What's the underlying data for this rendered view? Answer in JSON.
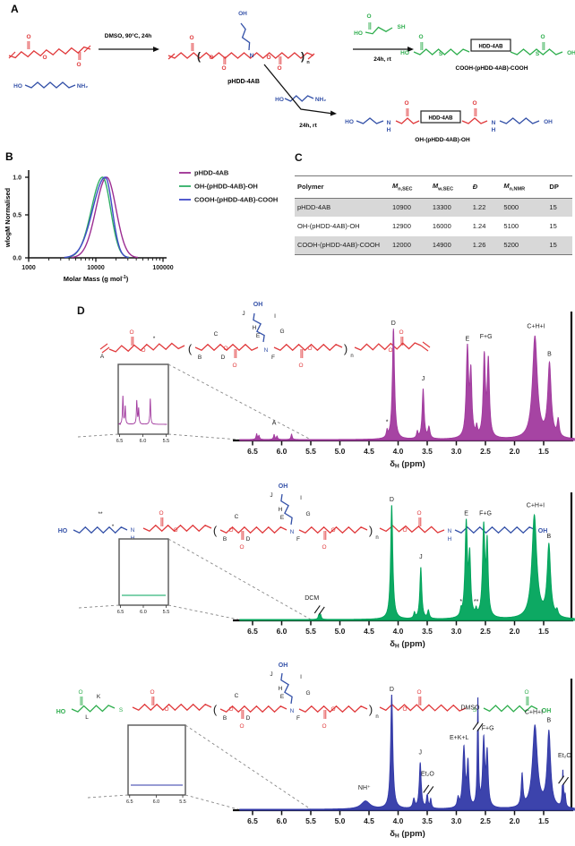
{
  "panel_labels": {
    "a": "A",
    "b": "B",
    "c": "C",
    "d": "D"
  },
  "panel_a": {
    "cond1": "DMSO, 90°C, 24h",
    "cond2": "24h, rt",
    "cond3": "24h, rt",
    "polymer_label": "pHDD-4AB",
    "box_label": "HDD-4AB",
    "product_cooh_label": "COOH-(pHDD-4AB)-COOH",
    "product_oh_label": "OH-(pHDD-4AB)-OH",
    "atoms": {
      "ho": "HO",
      "oh": "OH",
      "nh2": "NH₂",
      "sh": "SH",
      "n": "N",
      "h": "H",
      "o": "O",
      "s": "S",
      "lb": "(",
      "rb": ")",
      "nn": "n"
    }
  },
  "panel_b": {
    "ylabel": "wlogM Normalised",
    "xlabel_pre": "Molar Mass (g mol",
    "xlabel_sup": "-1",
    "xlabel_post": ")",
    "yticks": [
      "1.0",
      "0.5",
      "0.0"
    ],
    "xticks": [
      "1000",
      "10000",
      "100000"
    ]
  },
  "panel_c": {
    "table": {
      "headers": [
        {
          "text": "Polymer",
          "italic": false,
          "sub": ""
        },
        {
          "text": "M",
          "italic": true,
          "sub": "n,SEC"
        },
        {
          "text": "M",
          "italic": true,
          "sub": "w,SEC"
        },
        {
          "text": "Đ",
          "italic": true,
          "sub": ""
        },
        {
          "text": "M",
          "italic": true,
          "sub": "n,NMR"
        },
        {
          "text": "DP",
          "italic": false,
          "sub": ""
        }
      ],
      "rows": [
        [
          "pHDD-4AB",
          "10900",
          "13300",
          "1.22",
          "5000",
          "15"
        ],
        [
          "OH-(pHDD-4AB)-OH",
          "12900",
          "16000",
          "1.24",
          "5100",
          "15"
        ],
        [
          "COOH-(pHDD-4AB)-COOH",
          "12000",
          "14900",
          "1.26",
          "5200",
          "15"
        ]
      ]
    }
  },
  "panel_d": {
    "xlabel": {
      "symbol": "δ",
      "sub": "H",
      "rest": " (ppm)"
    },
    "ticks": [
      "6.5",
      "6.0",
      "5.5",
      "5.0",
      "4.5",
      "4.0",
      "3.5",
      "3.0",
      "2.5",
      "2.0",
      "1.5"
    ],
    "inset_ticks": [
      "6.5",
      "6.0",
      "5.5"
    ]
  },
  "chart_data": [
    {
      "type": "line",
      "panel": "B",
      "xlabel": "Molar Mass (g mol-1)",
      "ylabel": "wlogM Normalised",
      "x_scale": "log",
      "xlim": [
        1000,
        100000
      ],
      "ylim": [
        0.0,
        1.0
      ],
      "xticks": [
        1000,
        10000,
        100000
      ],
      "yticks": [
        0.0,
        0.5,
        1.0
      ],
      "grid": false,
      "legend_position": "right",
      "series": [
        {
          "name": "pHDD-4AB",
          "color": "#9c2d92",
          "peak_molar_mass": 14500,
          "peak_y": 1.0,
          "onset": 4500,
          "end": 55000,
          "log_mu": 4.161,
          "sigma_log_left": 0.16,
          "sigma_log_right": 0.14
        },
        {
          "name": "OH-(pHDD-4AB)-OH",
          "color": "#2fae66",
          "peak_molar_mass": 12600,
          "peak_y": 1.0,
          "onset": 4300,
          "end": 45000,
          "log_mu": 4.1,
          "sigma_log_left": 0.165,
          "sigma_log_right": 0.12
        },
        {
          "name": "COOH-(pHDD-4AB)-COOH",
          "color": "#4049c8",
          "peak_molar_mass": 13800,
          "peak_y": 1.0,
          "onset": 3100,
          "end": 40000,
          "log_mu": 4.14,
          "sigma_log_left": 0.185,
          "sigma_log_right": 0.105
        }
      ]
    },
    {
      "type": "nmr",
      "name": "pHDD-4AB",
      "color": "#a13a9e",
      "xlabel": "δH (ppm)",
      "xlim": [
        6.75,
        0.95
      ],
      "peaks": [
        [
          6.43,
          0.05,
          0.012
        ],
        [
          6.39,
          0.035,
          0.012
        ],
        [
          6.13,
          0.045,
          0.012
        ],
        [
          6.08,
          0.03,
          0.012
        ],
        [
          5.83,
          0.05,
          0.012
        ],
        [
          4.19,
          0.06,
          0.014
        ],
        [
          4.08,
          1.0,
          0.022
        ],
        [
          3.67,
          0.06,
          0.015
        ],
        [
          3.57,
          0.45,
          0.02
        ],
        [
          3.47,
          0.1,
          0.02
        ],
        [
          2.81,
          0.8,
          0.024
        ],
        [
          2.75,
          0.55,
          0.02
        ],
        [
          2.65,
          0.08,
          0.015
        ],
        [
          2.52,
          0.72,
          0.022
        ],
        [
          2.45,
          0.68,
          0.022
        ],
        [
          1.65,
          0.92,
          0.05
        ],
        [
          1.4,
          0.66,
          0.035
        ],
        [
          1.25,
          0.15,
          0.02
        ]
      ],
      "labels": [
        [
          "D",
          4.08,
          1.0,
          0
        ],
        [
          "J",
          3.57,
          0.5,
          0
        ],
        [
          "E",
          2.81,
          0.86,
          0
        ],
        [
          "F+G",
          2.49,
          0.88,
          0
        ],
        [
          "C+H+I",
          1.63,
          0.97,
          0
        ],
        [
          "B",
          1.4,
          0.72,
          0
        ],
        [
          "A",
          6.13,
          0.1,
          0
        ],
        [
          "*",
          4.19,
          0.11,
          0
        ]
      ],
      "breaks": [],
      "inset_peaks": [
        [
          6.43,
          0.6
        ],
        [
          6.38,
          0.38
        ],
        [
          6.13,
          0.5
        ],
        [
          6.09,
          0.33
        ],
        [
          5.84,
          0.55
        ]
      ],
      "structure_texts": [
        [
          "A",
          114,
          70
        ],
        [
          "O",
          147,
          43,
          "r"
        ],
        [
          "O",
          160,
          63,
          "r"
        ],
        [
          "*",
          172,
          50
        ],
        [
          "(",
          212,
          64,
          "k",
          13
        ],
        [
          "B",
          223,
          71
        ],
        [
          "C",
          241,
          45
        ],
        [
          "D",
          249,
          71
        ],
        [
          "O",
          252,
          61,
          "r"
        ],
        [
          "O",
          262,
          80,
          "r"
        ],
        [
          "E",
          288,
          47
        ],
        [
          "N",
          297,
          63,
          "b"
        ],
        [
          "F",
          305,
          71
        ],
        [
          "G",
          315,
          42
        ],
        [
          "H",
          284,
          38
        ],
        [
          "I",
          307,
          25
        ],
        [
          "J",
          272,
          22
        ],
        [
          "OH",
          288,
          12,
          "b",
          7,
          1
        ],
        [
          "O",
          336,
          80,
          "r"
        ],
        [
          "O",
          346,
          61,
          "r"
        ],
        [
          ")",
          386,
          64,
          "k",
          13
        ],
        [
          "n",
          393,
          69,
          "k",
          6
        ],
        [
          "O",
          436,
          63,
          "r"
        ],
        [
          "O",
          448,
          43,
          "r"
        ]
      ]
    },
    {
      "type": "nmr",
      "name": "OH-(pHDD-4AB)-OH",
      "color": "#00a45b",
      "xlabel": "δH (ppm)",
      "xlim": [
        6.75,
        0.95
      ],
      "peaks": [
        [
          5.36,
          0.05,
          0.012
        ],
        [
          5.33,
          0.04,
          0.012
        ],
        [
          4.11,
          1.0,
          0.022
        ],
        [
          3.72,
          0.05,
          0.015
        ],
        [
          3.61,
          0.45,
          0.02
        ],
        [
          3.48,
          0.07,
          0.018
        ],
        [
          2.92,
          0.05,
          0.015
        ],
        [
          2.83,
          0.82,
          0.024
        ],
        [
          2.77,
          0.5,
          0.02
        ],
        [
          2.66,
          0.05,
          0.015
        ],
        [
          2.53,
          0.78,
          0.024
        ],
        [
          2.47,
          0.62,
          0.02
        ],
        [
          1.66,
          0.9,
          0.05
        ],
        [
          1.41,
          0.63,
          0.035
        ],
        [
          1.27,
          0.05,
          0.02
        ]
      ],
      "labels": [
        [
          "D",
          4.11,
          1.0,
          0
        ],
        [
          "J",
          3.61,
          0.5,
          0
        ],
        [
          "E",
          2.83,
          0.88,
          0
        ],
        [
          "F+G",
          2.5,
          0.88,
          0
        ],
        [
          "C+H+I",
          1.64,
          0.95,
          0
        ],
        [
          "B",
          1.41,
          0.68,
          0
        ],
        [
          "DCM",
          5.42,
          0.14,
          -4
        ],
        [
          "*",
          2.92,
          0.11,
          0
        ],
        [
          "**",
          2.66,
          0.11,
          0
        ]
      ],
      "breaks": [
        [
          5.35,
          0.09
        ]
      ],
      "inset_peaks": [],
      "structure_texts": [
        [
          "HO",
          70,
          65,
          "b",
          7,
          1
        ],
        [
          "N",
          148,
          64,
          "b"
        ],
        [
          "H",
          148,
          73,
          "b"
        ],
        [
          "**",
          112,
          46
        ],
        [
          "*",
          126,
          60
        ],
        [
          "O",
          180,
          45,
          "r"
        ],
        [
          "O",
          196,
          64,
          "r"
        ],
        [
          "(",
          240,
          67,
          "k",
          13
        ],
        [
          "B",
          251,
          74
        ],
        [
          "C",
          264,
          49
        ],
        [
          "D",
          277,
          74
        ],
        [
          "O",
          258,
          64,
          "r"
        ],
        [
          "O",
          270,
          83,
          "r"
        ],
        [
          "E",
          315,
          50
        ],
        [
          "N",
          326,
          66,
          "b"
        ],
        [
          "F",
          333,
          74
        ],
        [
          "G",
          344,
          46
        ],
        [
          "H",
          313,
          41
        ],
        [
          "I",
          336,
          28
        ],
        [
          "J",
          303,
          25
        ],
        [
          "OH",
          316,
          15,
          "b",
          7,
          1
        ],
        [
          "O",
          362,
          83,
          "r"
        ],
        [
          "O",
          372,
          64,
          "r"
        ],
        [
          ")",
          414,
          67,
          "k",
          13
        ],
        [
          "n",
          421,
          72,
          "k",
          6
        ],
        [
          "O",
          452,
          64,
          "r"
        ],
        [
          "O",
          468,
          45,
          "r"
        ],
        [
          "N",
          502,
          65,
          "b"
        ],
        [
          "H",
          502,
          74,
          "b"
        ],
        [
          "OH",
          606,
          65,
          "b",
          7,
          1
        ]
      ]
    },
    {
      "type": "nmr",
      "name": "COOH-(pHDD-4AB)-COOH",
      "color": "#3239a8",
      "xlabel": "δH (ppm)",
      "xlim": [
        6.75,
        0.95
      ],
      "peaks": [
        [
          4.56,
          0.07,
          0.09
        ],
        [
          4.11,
          1.0,
          0.022
        ],
        [
          3.73,
          0.08,
          0.02
        ],
        [
          3.62,
          0.4,
          0.02
        ],
        [
          3.5,
          0.13,
          0.014
        ],
        [
          3.44,
          0.08,
          0.014
        ],
        [
          2.97,
          0.08,
          0.018
        ],
        [
          2.87,
          0.52,
          0.024
        ],
        [
          2.8,
          0.38,
          0.02
        ],
        [
          2.63,
          0.95,
          0.012
        ],
        [
          2.53,
          0.58,
          0.022
        ],
        [
          2.47,
          0.46,
          0.02
        ],
        [
          1.87,
          0.28,
          0.018
        ],
        [
          1.65,
          0.72,
          0.05
        ],
        [
          1.41,
          0.66,
          0.035
        ],
        [
          1.17,
          0.32,
          0.012
        ],
        [
          1.13,
          0.1,
          0.012
        ]
      ],
      "labels": [
        [
          "D",
          4.11,
          1.0,
          0
        ],
        [
          "NH⁺",
          4.58,
          0.14,
          0
        ],
        [
          "J",
          3.62,
          0.45,
          0
        ],
        [
          "Et₂O",
          3.54,
          0.26,
          3
        ],
        [
          "E+K+L",
          2.92,
          0.58,
          -2
        ],
        [
          "DMSO",
          2.7,
          0.84,
          -4
        ],
        [
          "F+G",
          2.49,
          0.66,
          2
        ],
        [
          "C+H+I",
          1.67,
          0.8,
          0
        ],
        [
          "B",
          1.41,
          0.73,
          0
        ],
        [
          "Et₂O",
          1.17,
          0.42,
          2
        ]
      ],
      "breaks": [
        [
          2.63,
          0.73
        ],
        [
          3.48,
          0.18
        ],
        [
          1.16,
          0.26
        ]
      ],
      "inset_peaks": [],
      "structure_texts": [
        [
          "HO",
          68,
          67,
          "g",
          7,
          1
        ],
        [
          "O",
          90,
          45,
          "g"
        ],
        [
          "K",
          110,
          50
        ],
        [
          "L",
          97,
          73
        ],
        [
          "S",
          135,
          65,
          "g"
        ],
        [
          "O",
          170,
          45,
          "r"
        ],
        [
          "O",
          186,
          64,
          "r"
        ],
        [
          "(",
          240,
          67,
          "k",
          13
        ],
        [
          "B",
          251,
          74
        ],
        [
          "C",
          264,
          49
        ],
        [
          "D",
          277,
          74
        ],
        [
          "O",
          258,
          64,
          "r"
        ],
        [
          "O",
          270,
          83,
          "r"
        ],
        [
          "E",
          315,
          50
        ],
        [
          "N",
          326,
          66,
          "b"
        ],
        [
          "F",
          333,
          74
        ],
        [
          "G",
          344,
          46
        ],
        [
          "H",
          313,
          41
        ],
        [
          "I",
          336,
          28
        ],
        [
          "J",
          303,
          25
        ],
        [
          "OH",
          316,
          15,
          "b",
          7,
          1
        ],
        [
          "O",
          362,
          83,
          "r"
        ],
        [
          "O",
          372,
          64,
          "r"
        ],
        [
          ")",
          414,
          67,
          "k",
          13
        ],
        [
          "n",
          421,
          72,
          "k",
          6
        ],
        [
          "O",
          452,
          64,
          "r"
        ],
        [
          "O",
          468,
          45,
          "r"
        ],
        [
          "S",
          530,
          65,
          "g"
        ],
        [
          "O",
          588,
          45,
          "g"
        ],
        [
          "OH",
          610,
          66,
          "g",
          7,
          1
        ]
      ]
    }
  ]
}
